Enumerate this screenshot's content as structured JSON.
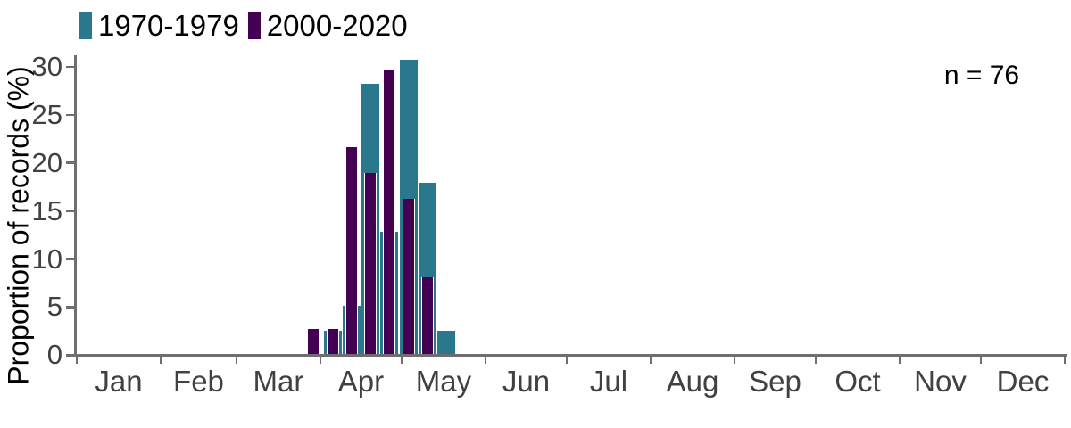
{
  "figure": {
    "annotation_n": "n = 76",
    "y_axis_title": "Proportion of records (%)",
    "colors": {
      "series_1970_1979": "#2a788e",
      "series_2000_2020": "#440154",
      "axis_line": "#6e6e6e",
      "tick_label": "#414141",
      "text": "#000000",
      "background": "#ffffff"
    }
  },
  "legend": {
    "position": "top-left",
    "items": [
      {
        "label": "1970-1979",
        "color": "#2a788e"
      },
      {
        "label": "2000-2020",
        "color": "#440154"
      }
    ]
  },
  "chart_data": {
    "type": "bar",
    "title": "",
    "xlabel": "",
    "ylabel": "Proportion of records (%)",
    "annotation": "n = 76",
    "grid": false,
    "legend_position": "top-left",
    "ylim": [
      0,
      30
    ],
    "y_ticks": [
      0,
      5,
      10,
      15,
      20,
      25,
      30
    ],
    "x_axis_unit": "month of year",
    "x_tick_labels": [
      "Jan",
      "Feb",
      "Mar",
      "Apr",
      "May",
      "Jun",
      "Jul",
      "Aug",
      "Sep",
      "Oct",
      "Nov",
      "Dec"
    ],
    "month_boundary_days": [
      0,
      31,
      59,
      90,
      120,
      151,
      181,
      212,
      243,
      273,
      304,
      334,
      365
    ],
    "bin_width_days": 7,
    "bins_center_day_of_year": [
      87.5,
      94.5,
      101.5,
      108.5,
      115.5,
      122.5,
      129.5,
      136.5
    ],
    "bins_approx_dates": [
      "Mar 28",
      "Apr 4",
      "Apr 11",
      "Apr 18",
      "Apr 25",
      "May 2",
      "May 9",
      "May 16"
    ],
    "series": [
      {
        "name": "1970-1979",
        "color": "#2a788e",
        "values": [
          0,
          2.56,
          5.13,
          28.21,
          12.82,
          30.77,
          17.95,
          2.56
        ]
      },
      {
        "name": "2000-2020",
        "color": "#440154",
        "values": [
          2.7,
          2.7,
          21.62,
          18.92,
          29.73,
          16.22,
          8.11,
          0
        ]
      }
    ]
  }
}
